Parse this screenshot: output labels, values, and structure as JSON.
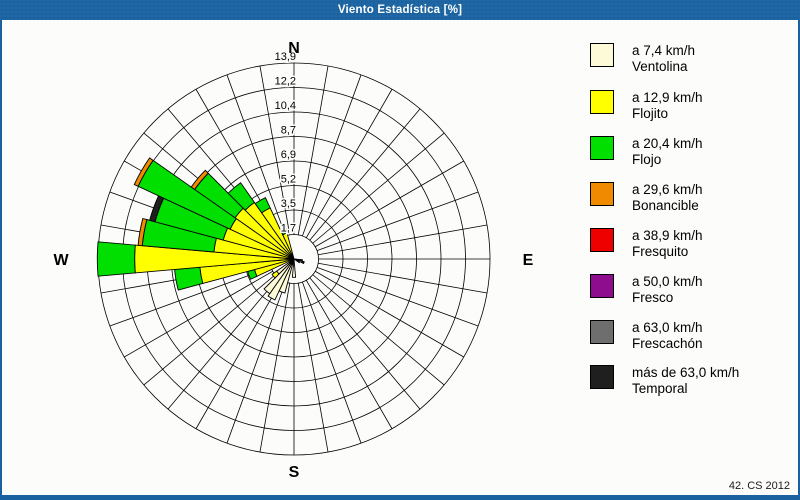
{
  "window": {
    "title": "Viento Estadística [%]"
  },
  "footer": {
    "credit": "42. CS 2012"
  },
  "chart_data": {
    "type": "windrose",
    "title": "Viento Estadística [%]",
    "units": "%",
    "sector_width_deg": 10,
    "max_value": 13.9,
    "ring_values": [
      1.7375,
      3.475,
      5.2125,
      6.95,
      8.6875,
      10.425,
      12.1625,
      13.9
    ],
    "ring_labels": [
      "1,7",
      "3,5",
      "5,2",
      "6,9",
      "8,7",
      "10,4",
      "12,2",
      "13,9"
    ],
    "compass": {
      "n": "N",
      "e": "E",
      "s": "S",
      "w": "W"
    },
    "grid": true,
    "legend_position": "right",
    "categories": [
      {
        "name": "Ventolina",
        "speed_label": "a 7,4 km/h",
        "color": "#fdfad8"
      },
      {
        "name": "Flojito",
        "speed_label": "a 12,9 km/h",
        "color": "#ffff00"
      },
      {
        "name": "Flojo",
        "speed_label": "a 20,4 km/h",
        "color": "#00df00"
      },
      {
        "name": "Bonancible",
        "speed_label": "a 29,6 km/h",
        "color": "#f08a00"
      },
      {
        "name": "Fresquito",
        "speed_label": "a 38,9 km/h",
        "color": "#ee0000"
      },
      {
        "name": "Fresco",
        "speed_label": "a 50,0 km/h",
        "color": "#8e0c8e"
      },
      {
        "name": "Frescachón",
        "speed_label": "a 63,0 km/h",
        "color": "#6e6e6e"
      },
      {
        "name": "Temporal",
        "speed_label": "más de 63,0 km/h",
        "color": "#1f1f1f"
      }
    ],
    "sectors": [
      {
        "dir": 100,
        "cum": [
          0.5,
          0.5,
          0.5,
          0.5,
          0.5,
          0.5,
          0.5,
          0.6
        ]
      },
      {
        "dir": 110,
        "cum": [
          0.6,
          0.6,
          0.6,
          0.6,
          0.6,
          0.6,
          0.6,
          0.75
        ]
      },
      {
        "dir": 120,
        "cum": [
          0.45,
          0.45,
          0.45,
          0.45,
          0.45,
          0.45,
          0.45,
          0.45
        ]
      },
      {
        "dir": 180,
        "cum": [
          1.3,
          1.3,
          1.3,
          1.3,
          1.3,
          1.3,
          1.3,
          1.3
        ]
      },
      {
        "dir": 200,
        "cum": [
          2.5,
          2.5,
          2.5,
          2.5,
          2.5,
          2.5,
          2.5,
          2.5
        ]
      },
      {
        "dir": 210,
        "cum": [
          3.2,
          3.2,
          3.2,
          3.2,
          3.2,
          3.2,
          3.2,
          3.2
        ]
      },
      {
        "dir": 220,
        "cum": [
          3.0,
          3.0,
          3.0,
          3.0,
          3.0,
          3.0,
          3.0,
          3.0
        ]
      },
      {
        "dir": 230,
        "cum": [
          1.5,
          1.9,
          1.9,
          1.9,
          1.9,
          1.9,
          1.9,
          1.9
        ]
      },
      {
        "dir": 250,
        "cum": [
          0,
          2.9,
          3.4,
          3.4,
          3.4,
          3.4,
          3.4,
          3.4
        ]
      },
      {
        "dir": 260,
        "cum": [
          0,
          6.7,
          8.5,
          8.5,
          8.5,
          8.5,
          8.5,
          8.5
        ]
      },
      {
        "dir": 270,
        "cum": [
          0,
          11.3,
          13.95,
          13.95,
          13.95,
          13.95,
          13.95,
          13.95
        ]
      },
      {
        "dir": 280,
        "cum": [
          0,
          5.7,
          10.8,
          11.1,
          11.1,
          11.1,
          11.1,
          11.1
        ]
      },
      {
        "dir": 290,
        "cum": [
          0,
          5.2,
          10.2,
          10.2,
          10.2,
          10.2,
          10.2,
          10.6
        ]
      },
      {
        "dir": 300,
        "cum": [
          0,
          5.0,
          12.2,
          12.5,
          12.5,
          12.5,
          12.5,
          12.5
        ]
      },
      {
        "dir": 310,
        "cum": [
          0,
          5.1,
          8.6,
          8.9,
          8.9,
          8.9,
          8.9,
          8.9
        ]
      },
      {
        "dir": 320,
        "cum": [
          0,
          4.9,
          6.6,
          6.6,
          6.6,
          6.6,
          6.6,
          6.6
        ]
      },
      {
        "dir": 330,
        "cum": [
          0,
          4.0,
          4.8,
          4.8,
          4.8,
          4.8,
          4.8,
          4.8
        ]
      },
      {
        "dir": 340,
        "cum": [
          0,
          1.9,
          2.2,
          2.2,
          2.2,
          2.2,
          2.2,
          2.2
        ]
      }
    ]
  }
}
